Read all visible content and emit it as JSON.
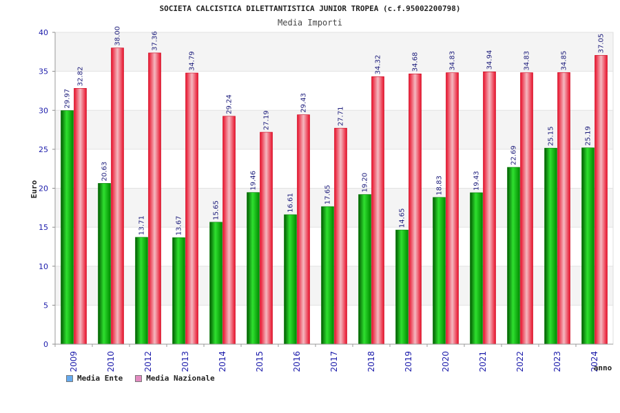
{
  "chart_data": {
    "type": "bar",
    "title": "SOCIETA CALCISTICA DILETTANTISTICA JUNIOR TROPEA (c.f.95002200798)",
    "subtitle": "Media Importi",
    "xlabel": "anno",
    "ylabel": "Euro",
    "ylim": [
      0,
      40
    ],
    "yticks": [
      0,
      5,
      10,
      15,
      20,
      25,
      30,
      35,
      40
    ],
    "grid": true,
    "legend_position": "bottom-left",
    "categories": [
      "2009",
      "2010",
      "2012",
      "2013",
      "2014",
      "2015",
      "2016",
      "2017",
      "2018",
      "2019",
      "2020",
      "2021",
      "2022",
      "2023",
      "2024"
    ],
    "series": [
      {
        "name": "Media Ente",
        "bar_color": "#00b400",
        "legend_color": "#66aaee",
        "values": [
          29.97,
          20.63,
          13.71,
          13.67,
          15.65,
          19.46,
          16.61,
          17.65,
          19.2,
          14.65,
          18.83,
          19.43,
          22.69,
          25.15,
          25.19
        ]
      },
      {
        "name": "Media Nazionale",
        "bar_color": "#ee1c2c",
        "legend_color": "#e28ac0",
        "values": [
          32.82,
          38.0,
          37.36,
          34.79,
          29.24,
          27.19,
          29.43,
          27.71,
          34.32,
          34.68,
          34.83,
          34.94,
          34.83,
          34.85,
          37.05
        ]
      }
    ]
  }
}
